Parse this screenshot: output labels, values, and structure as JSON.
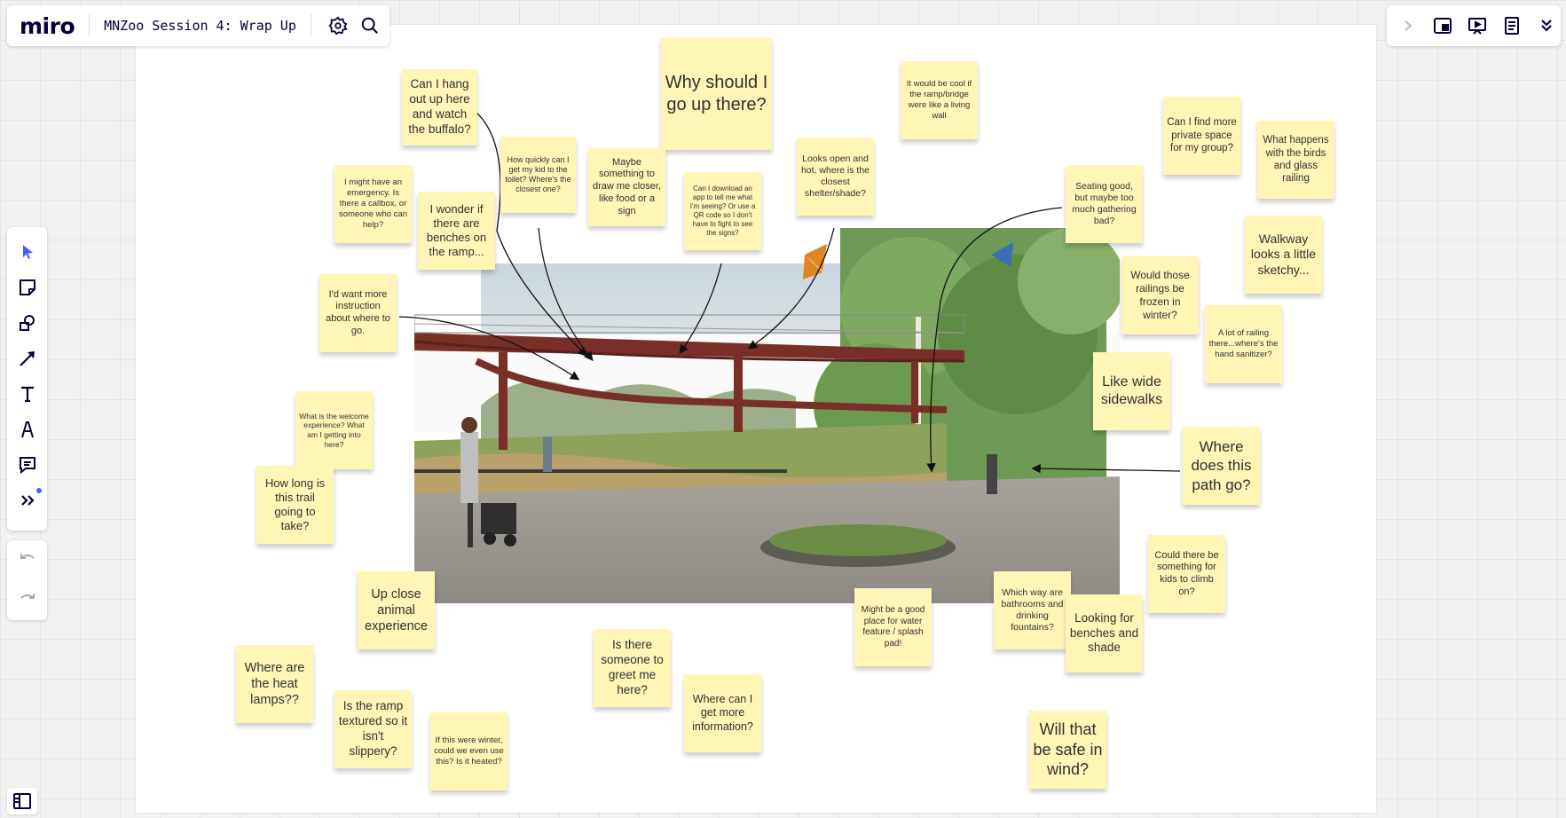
{
  "app": {
    "logo": "miro",
    "board_title": "MNZoo Session 4: Wrap Up"
  },
  "top_bar_icons": [
    "settings-icon",
    "search-icon"
  ],
  "right_toolbar_icons": [
    "chevron-right-icon",
    "sticky-board-icon",
    "present-icon",
    "notes-icon",
    "chevrons-down-icon"
  ],
  "left_toolbar": [
    "select-tool",
    "sticky-note-tool",
    "shapes-tool",
    "connector-tool",
    "text-tool",
    "pen-tool",
    "comment-tool",
    "more-tools"
  ],
  "colors": {
    "sticky": "#fff6b6",
    "accent": "#4262ff",
    "board_bg": "#f2f2f2"
  },
  "stickies": [
    {
      "id": "buffalo",
      "text": "Can I hang out up here and watch the buffalo?"
    },
    {
      "id": "toilet",
      "text": "How quickly can I get my kid to the toilet? Where's the closest one?"
    },
    {
      "id": "why",
      "text": "Why should I go up there?"
    },
    {
      "id": "living-wall",
      "text": "It would be cool if the ramp/bridge were like a living wall"
    },
    {
      "id": "private",
      "text": "Can I find more private space for my group?"
    },
    {
      "id": "birds",
      "text": "What happens with the birds and glass railing"
    },
    {
      "id": "emergency",
      "text": "I might have an emergency. Is there a callbox, or someone who can help?"
    },
    {
      "id": "benches-ramp",
      "text": "I wonder if there are benches on the ramp..."
    },
    {
      "id": "draw-closer",
      "text": "Maybe something to draw me closer, like food or a sign"
    },
    {
      "id": "app",
      "text": "Can I download an app to tell me what I'm seeing? Or use a QR code so I don't have to fight to see the signs?"
    },
    {
      "id": "shelter",
      "text": "Looks open and hot, where is the closest shelter/shade?"
    },
    {
      "id": "seating",
      "text": "Seating good, but maybe too much gathering bad?"
    },
    {
      "id": "walkway",
      "text": "Walkway looks a little sketchy..."
    },
    {
      "id": "railings-frozen",
      "text": "Would those railings be frozen in winter?"
    },
    {
      "id": "instruction",
      "text": "I'd want more instruction about where to go."
    },
    {
      "id": "sanitizer",
      "text": "A lot of railing there...where's the hand sanitizer?"
    },
    {
      "id": "wide-sidewalks",
      "text": "Like wide sidewalks"
    },
    {
      "id": "welcome",
      "text": "What is the welcome experience? What am I getting into here?"
    },
    {
      "id": "where-path",
      "text": "Where does this path go?"
    },
    {
      "id": "how-long",
      "text": "How long is this trail going to take?"
    },
    {
      "id": "climb",
      "text": "Could there be something for kids to climb on?"
    },
    {
      "id": "up-close",
      "text": "Up close animal experience"
    },
    {
      "id": "water-feature",
      "text": "Might be a good place for water feature / splash pad!"
    },
    {
      "id": "bathrooms",
      "text": "Which way are bathrooms and drinking fountains?"
    },
    {
      "id": "benches-shade",
      "text": "Looking for benches and shade"
    },
    {
      "id": "greet",
      "text": "Is there someone to greet me here?"
    },
    {
      "id": "heat-lamps",
      "text": "Where are the heat lamps??"
    },
    {
      "id": "more-info",
      "text": "Where can I get more information?"
    },
    {
      "id": "textured",
      "text": "Is the ramp textured so it isn't slippery?"
    },
    {
      "id": "winter",
      "text": "If this were winter, could we even use this? Is it heated?"
    },
    {
      "id": "wind",
      "text": "Will that be safe in wind?"
    }
  ]
}
